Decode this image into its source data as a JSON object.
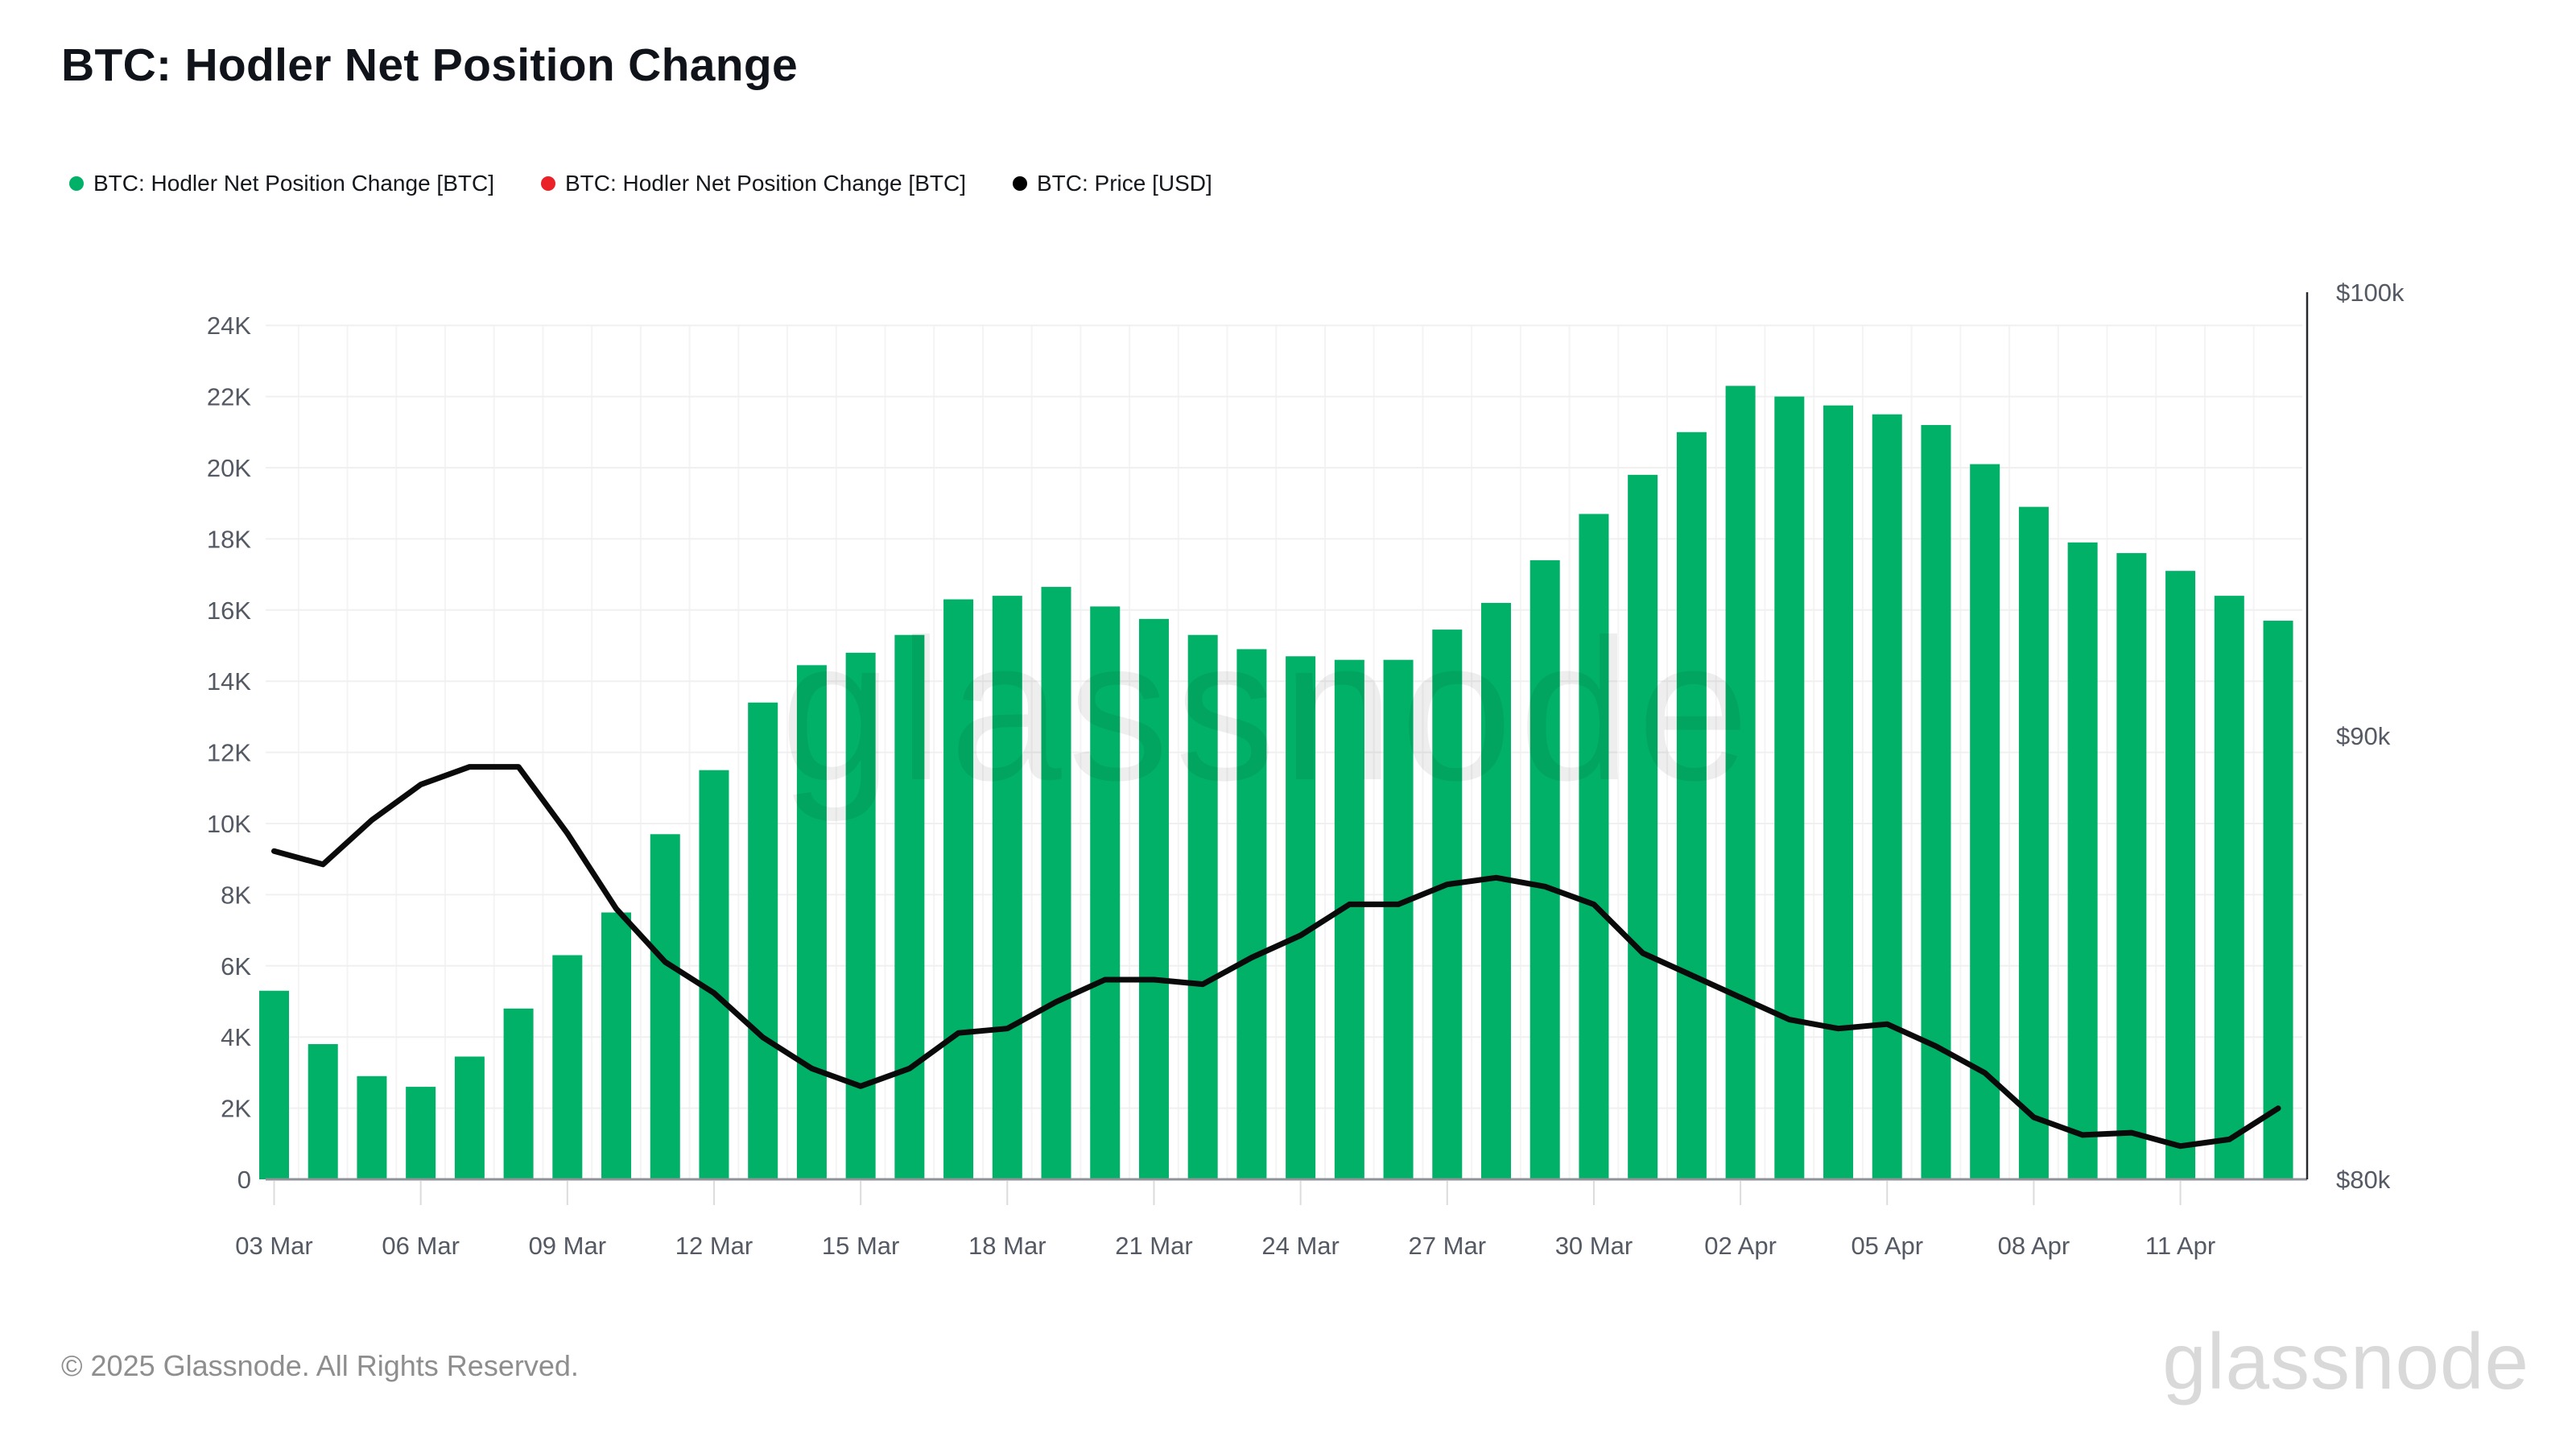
{
  "title": "BTC: Hodler Net Position Change",
  "legend": [
    {
      "label": "BTC: Hodler Net Position Change [BTC]",
      "color": "#00B167",
      "marker": "circle"
    },
    {
      "label": "BTC: Hodler Net Position Change [BTC]",
      "color": "#EA2127",
      "marker": "circle"
    },
    {
      "label": "BTC: Price [USD]",
      "color": "#000000",
      "marker": "circle"
    }
  ],
  "watermark_center": "glassnode",
  "footer": {
    "copyright": "© 2025 Glassnode. All Rights Reserved.",
    "brand": "glassnode"
  },
  "chart_data": {
    "type": "bar",
    "title": "BTC: Hodler Net Position Change",
    "legend_position": "top-left",
    "grid": true,
    "categories": [
      "03 Mar",
      "04 Mar",
      "05 Mar",
      "06 Mar",
      "07 Mar",
      "08 Mar",
      "09 Mar",
      "10 Mar",
      "11 Mar",
      "12 Mar",
      "13 Mar",
      "14 Mar",
      "15 Mar",
      "16 Mar",
      "17 Mar",
      "18 Mar",
      "19 Mar",
      "20 Mar",
      "21 Mar",
      "22 Mar",
      "23 Mar",
      "24 Mar",
      "25 Mar",
      "26 Mar",
      "27 Mar",
      "28 Mar",
      "29 Mar",
      "30 Mar",
      "31 Mar",
      "01 Apr",
      "02 Apr",
      "03 Apr",
      "04 Apr",
      "05 Apr",
      "06 Apr",
      "07 Apr",
      "08 Apr",
      "09 Apr",
      "10 Apr",
      "11 Apr",
      "12 Apr",
      "13 Apr"
    ],
    "series": [
      {
        "name": "BTC: Hodler Net Position Change [BTC]",
        "type": "bar",
        "color": "#00B167",
        "y_axis": "left",
        "unit": "BTC",
        "values": [
          5300,
          3800,
          2900,
          2600,
          3450,
          4800,
          6300,
          7500,
          9700,
          11500,
          13400,
          14450,
          14800,
          15300,
          16300,
          16400,
          16650,
          16100,
          15750,
          15300,
          14900,
          14700,
          14600,
          14600,
          15450,
          16200,
          17400,
          18700,
          19800,
          21000,
          22300,
          22000,
          21750,
          21500,
          21200,
          20100,
          18900,
          17900,
          17600,
          17100,
          16400,
          15700
        ]
      },
      {
        "name": "BTC: Price [USD]",
        "type": "line",
        "color": "#000000",
        "y_axis": "right",
        "unit": "USD",
        "values": [
          87400,
          87100,
          88100,
          88900,
          89300,
          89300,
          87800,
          86100,
          84900,
          84200,
          83200,
          82500,
          82100,
          82500,
          83300,
          83400,
          84000,
          84500,
          84500,
          84400,
          85000,
          85500,
          86200,
          86200,
          86650,
          86800,
          86600,
          86200,
          85100,
          84600,
          84100,
          83600,
          83400,
          83500,
          83000,
          82400,
          81400,
          81000,
          81050,
          80750,
          80900,
          81600
        ]
      }
    ],
    "left_axis": {
      "tick_labels": [
        "0",
        "2K",
        "4K",
        "6K",
        "8K",
        "10K",
        "12K",
        "14K",
        "16K",
        "18K",
        "20K",
        "22K",
        "24K"
      ],
      "tick_values": [
        0,
        2000,
        4000,
        6000,
        8000,
        10000,
        12000,
        14000,
        16000,
        18000,
        20000,
        22000,
        24000
      ],
      "min": 0,
      "max": 24000
    },
    "right_axis": {
      "tick_labels": [
        "$80k",
        "$90k",
        "$100k"
      ],
      "tick_values": [
        80000,
        90000,
        100000
      ],
      "min": 80000,
      "max": 100000
    },
    "x_tick_labels": [
      "03 Mar",
      "06 Mar",
      "09 Mar",
      "12 Mar",
      "15 Mar",
      "18 Mar",
      "21 Mar",
      "24 Mar",
      "27 Mar",
      "30 Mar",
      "02 Apr",
      "05 Apr",
      "08 Apr",
      "11 Apr"
    ],
    "x_tick_every_n": 3
  }
}
